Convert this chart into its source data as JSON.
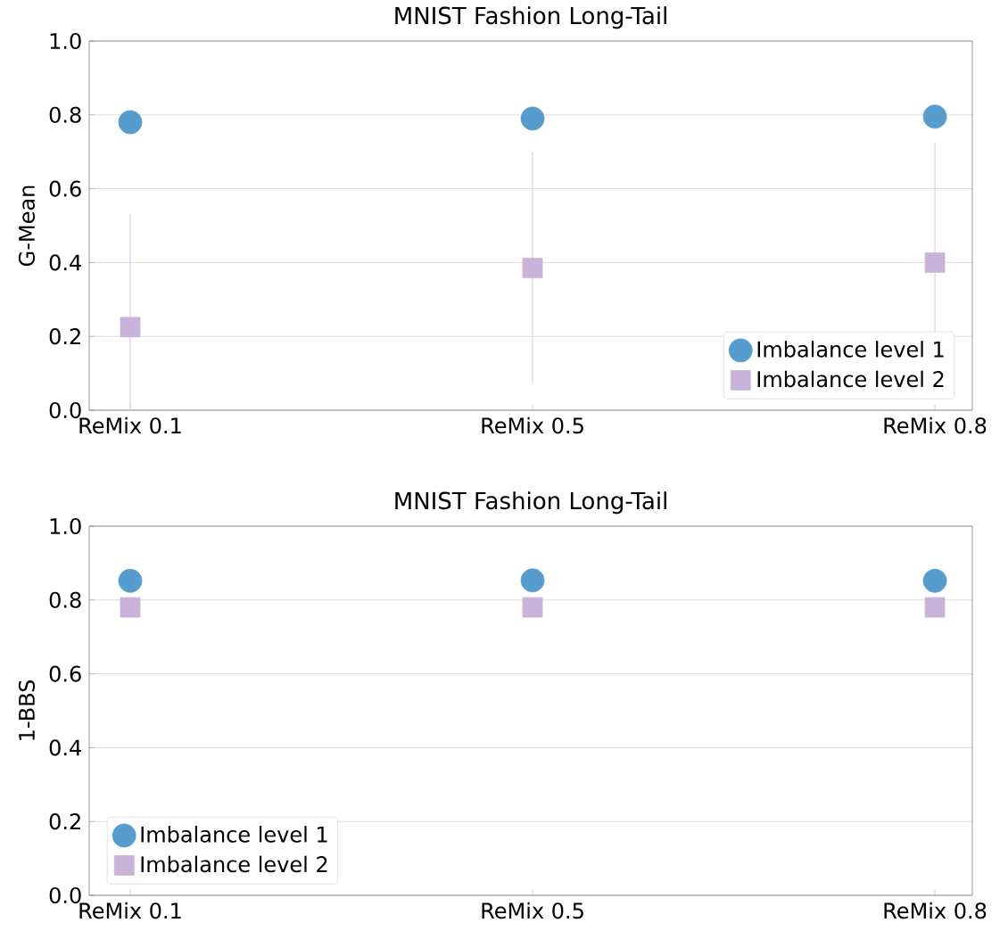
{
  "chart_data": [
    {
      "type": "scatter",
      "title": "MNIST Fashion Long-Tail",
      "ylabel": "G-Mean",
      "categories": [
        "ReMix 0.1",
        "ReMix 0.5",
        "ReMix 0.8"
      ],
      "series": [
        {
          "name": "Imbalance level 1",
          "color": "#569ccc",
          "marker": "circle",
          "values": [
            0.78,
            0.79,
            0.795
          ],
          "errors": [
            0.01,
            0.01,
            0.01
          ]
        },
        {
          "name": "Imbalance level 2",
          "color": "#c9b3da",
          "marker": "square",
          "values": [
            0.225,
            0.385,
            0.4
          ],
          "errors": [
            [
              0,
              0.53
            ],
            0.315,
            0.325
          ]
        }
      ],
      "ylim": [
        0,
        1
      ],
      "yticks": [
        {
          "value": 0,
          "label": "0.0"
        },
        {
          "value": 0.2,
          "label": "0.2"
        },
        {
          "value": 0.4,
          "label": "0.4"
        },
        {
          "value": 0.6,
          "label": "0.6"
        },
        {
          "value": 0.8,
          "label": "0.8"
        },
        {
          "value": 1,
          "label": "1.0"
        }
      ],
      "grid": "y",
      "legend": "bottom right"
    },
    {
      "type": "scatter",
      "title": "MNIST Fashion Long-Tail",
      "ylabel": "1-BBS",
      "categories": [
        "ReMix 0.1",
        "ReMix 0.5",
        "ReMix 0.8"
      ],
      "series": [
        {
          "name": "Imbalance level 1",
          "color": "#569ccc",
          "marker": "circle",
          "values": [
            0.852,
            0.853,
            0.852
          ]
        },
        {
          "name": "Imbalance level 2",
          "color": "#c9b3da",
          "marker": "square",
          "values": [
            0.78,
            0.78,
            0.78
          ]
        }
      ],
      "ylim": [
        0,
        1
      ],
      "yticks": [
        {
          "value": 0,
          "label": "0.0"
        },
        {
          "value": 0.2,
          "label": "0.2"
        },
        {
          "value": 0.4,
          "label": "0.4"
        },
        {
          "value": 0.6,
          "label": "0.6"
        },
        {
          "value": 0.8,
          "label": "0.8"
        },
        {
          "value": 1,
          "label": "1.0"
        }
      ],
      "grid": "y",
      "legend": "bottom left"
    }
  ]
}
